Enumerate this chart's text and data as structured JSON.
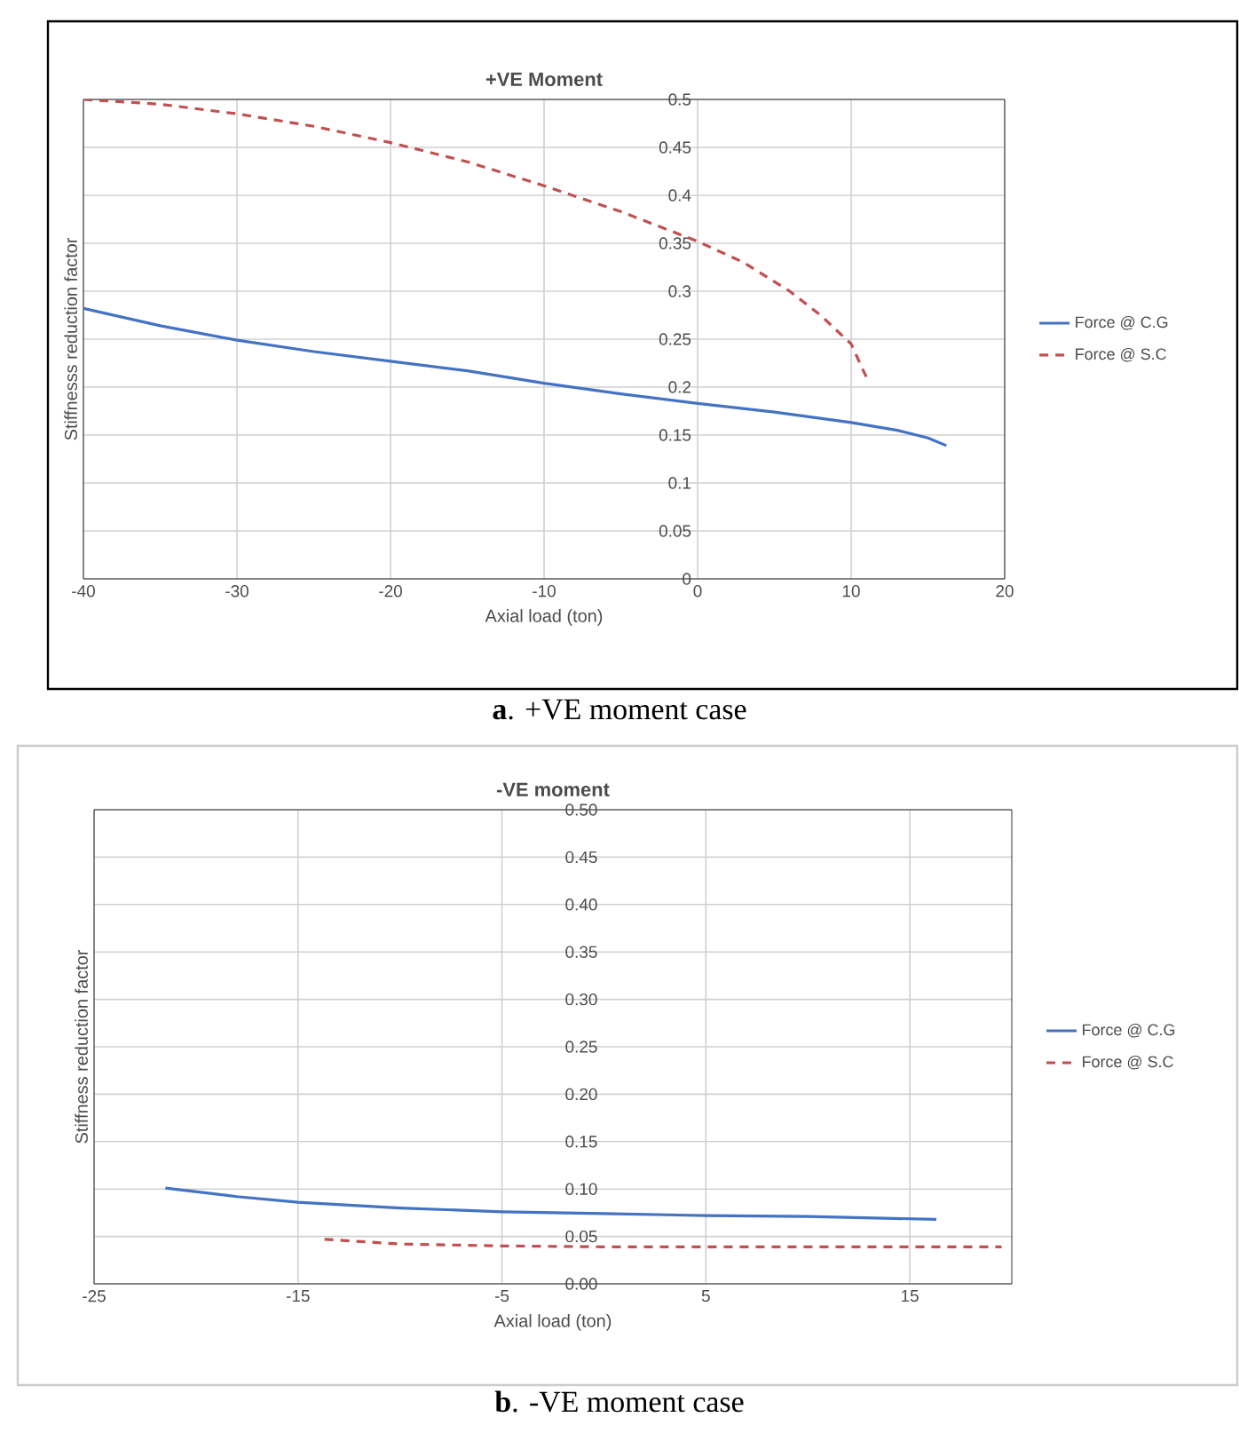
{
  "chart_data": [
    {
      "type": "line",
      "title": "+VE Moment",
      "xlabel": "Axial load (ton)",
      "ylabel": "Stiffnesss reduction factor",
      "xlim": [
        -40,
        20
      ],
      "xticks": [
        -40,
        -30,
        -20,
        -10,
        0,
        10,
        20
      ],
      "ylim": [
        0,
        0.5
      ],
      "yticks": [
        0,
        0.05,
        0.1,
        0.15,
        0.2,
        0.25,
        0.3,
        0.35,
        0.4,
        0.45,
        0.5
      ],
      "grid": true,
      "legend": "right",
      "series": [
        {
          "name": "Force @ C.G",
          "color": "#4472c4",
          "line_style": "solid",
          "x": [
            -40,
            -35,
            -30,
            -25,
            -20,
            -15,
            -10,
            -5,
            0,
            5,
            10,
            13,
            15,
            16.2
          ],
          "values": [
            0.282,
            0.264,
            0.249,
            0.237,
            0.227,
            0.217,
            0.204,
            0.193,
            0.183,
            0.174,
            0.163,
            0.155,
            0.147,
            0.139
          ]
        },
        {
          "name": "Force @ S.C",
          "color": "#c0504d",
          "line_style": "dashed",
          "x": [
            -40,
            -35,
            -30,
            -25,
            -20,
            -15,
            -10,
            -5,
            0,
            3,
            6,
            8,
            10,
            11
          ],
          "values": [
            0.5,
            0.495,
            0.485,
            0.472,
            0.455,
            0.435,
            0.41,
            0.383,
            0.352,
            0.33,
            0.3,
            0.275,
            0.245,
            0.21
          ]
        }
      ],
      "annotations": [
        "**a**. +VE moment case"
      ]
    },
    {
      "type": "line",
      "title": "-VE moment",
      "xlabel": "Axial load (ton)",
      "ylabel": "Stiffness reduction factor",
      "xlim": [
        -25,
        20
      ],
      "xticks": [
        -25,
        -15,
        -5,
        5,
        15
      ],
      "ylim": [
        0,
        0.5
      ],
      "yticks": [
        {
          "value": 0,
          "label": "0.00"
        },
        {
          "value": 0.05,
          "label": "0.05"
        },
        {
          "value": 0.1,
          "label": "0.10"
        },
        {
          "value": 0.15,
          "label": "0.15"
        },
        {
          "value": 0.2,
          "label": "0.20"
        },
        {
          "value": 0.25,
          "label": "0.25"
        },
        {
          "value": 0.3,
          "label": "0.30"
        },
        {
          "value": 0.35,
          "label": "0.35"
        },
        {
          "value": 0.4,
          "label": "0.40"
        },
        {
          "value": 0.45,
          "label": "0.45"
        },
        {
          "value": 0.5,
          "label": "0.50"
        }
      ],
      "grid": true,
      "legend": "right",
      "series": [
        {
          "name": "Force @ C.G",
          "color": "#4472c4",
          "line_style": "solid",
          "x": [
            -21.5,
            -18,
            -15,
            -10,
            -5,
            0,
            5,
            10,
            16.3
          ],
          "values": [
            0.101,
            0.092,
            0.086,
            0.08,
            0.076,
            0.074,
            0.072,
            0.071,
            0.068
          ]
        },
        {
          "name": "Force @ S.C",
          "color": "#c0504d",
          "line_style": "dashed",
          "x": [
            -13.7,
            -10,
            -5,
            0,
            5,
            10,
            15,
            19.5
          ],
          "values": [
            0.047,
            0.042,
            0.04,
            0.039,
            0.039,
            0.039,
            0.039,
            0.039
          ]
        }
      ],
      "annotations": [
        "**b**.  -VE moment case"
      ]
    }
  ]
}
